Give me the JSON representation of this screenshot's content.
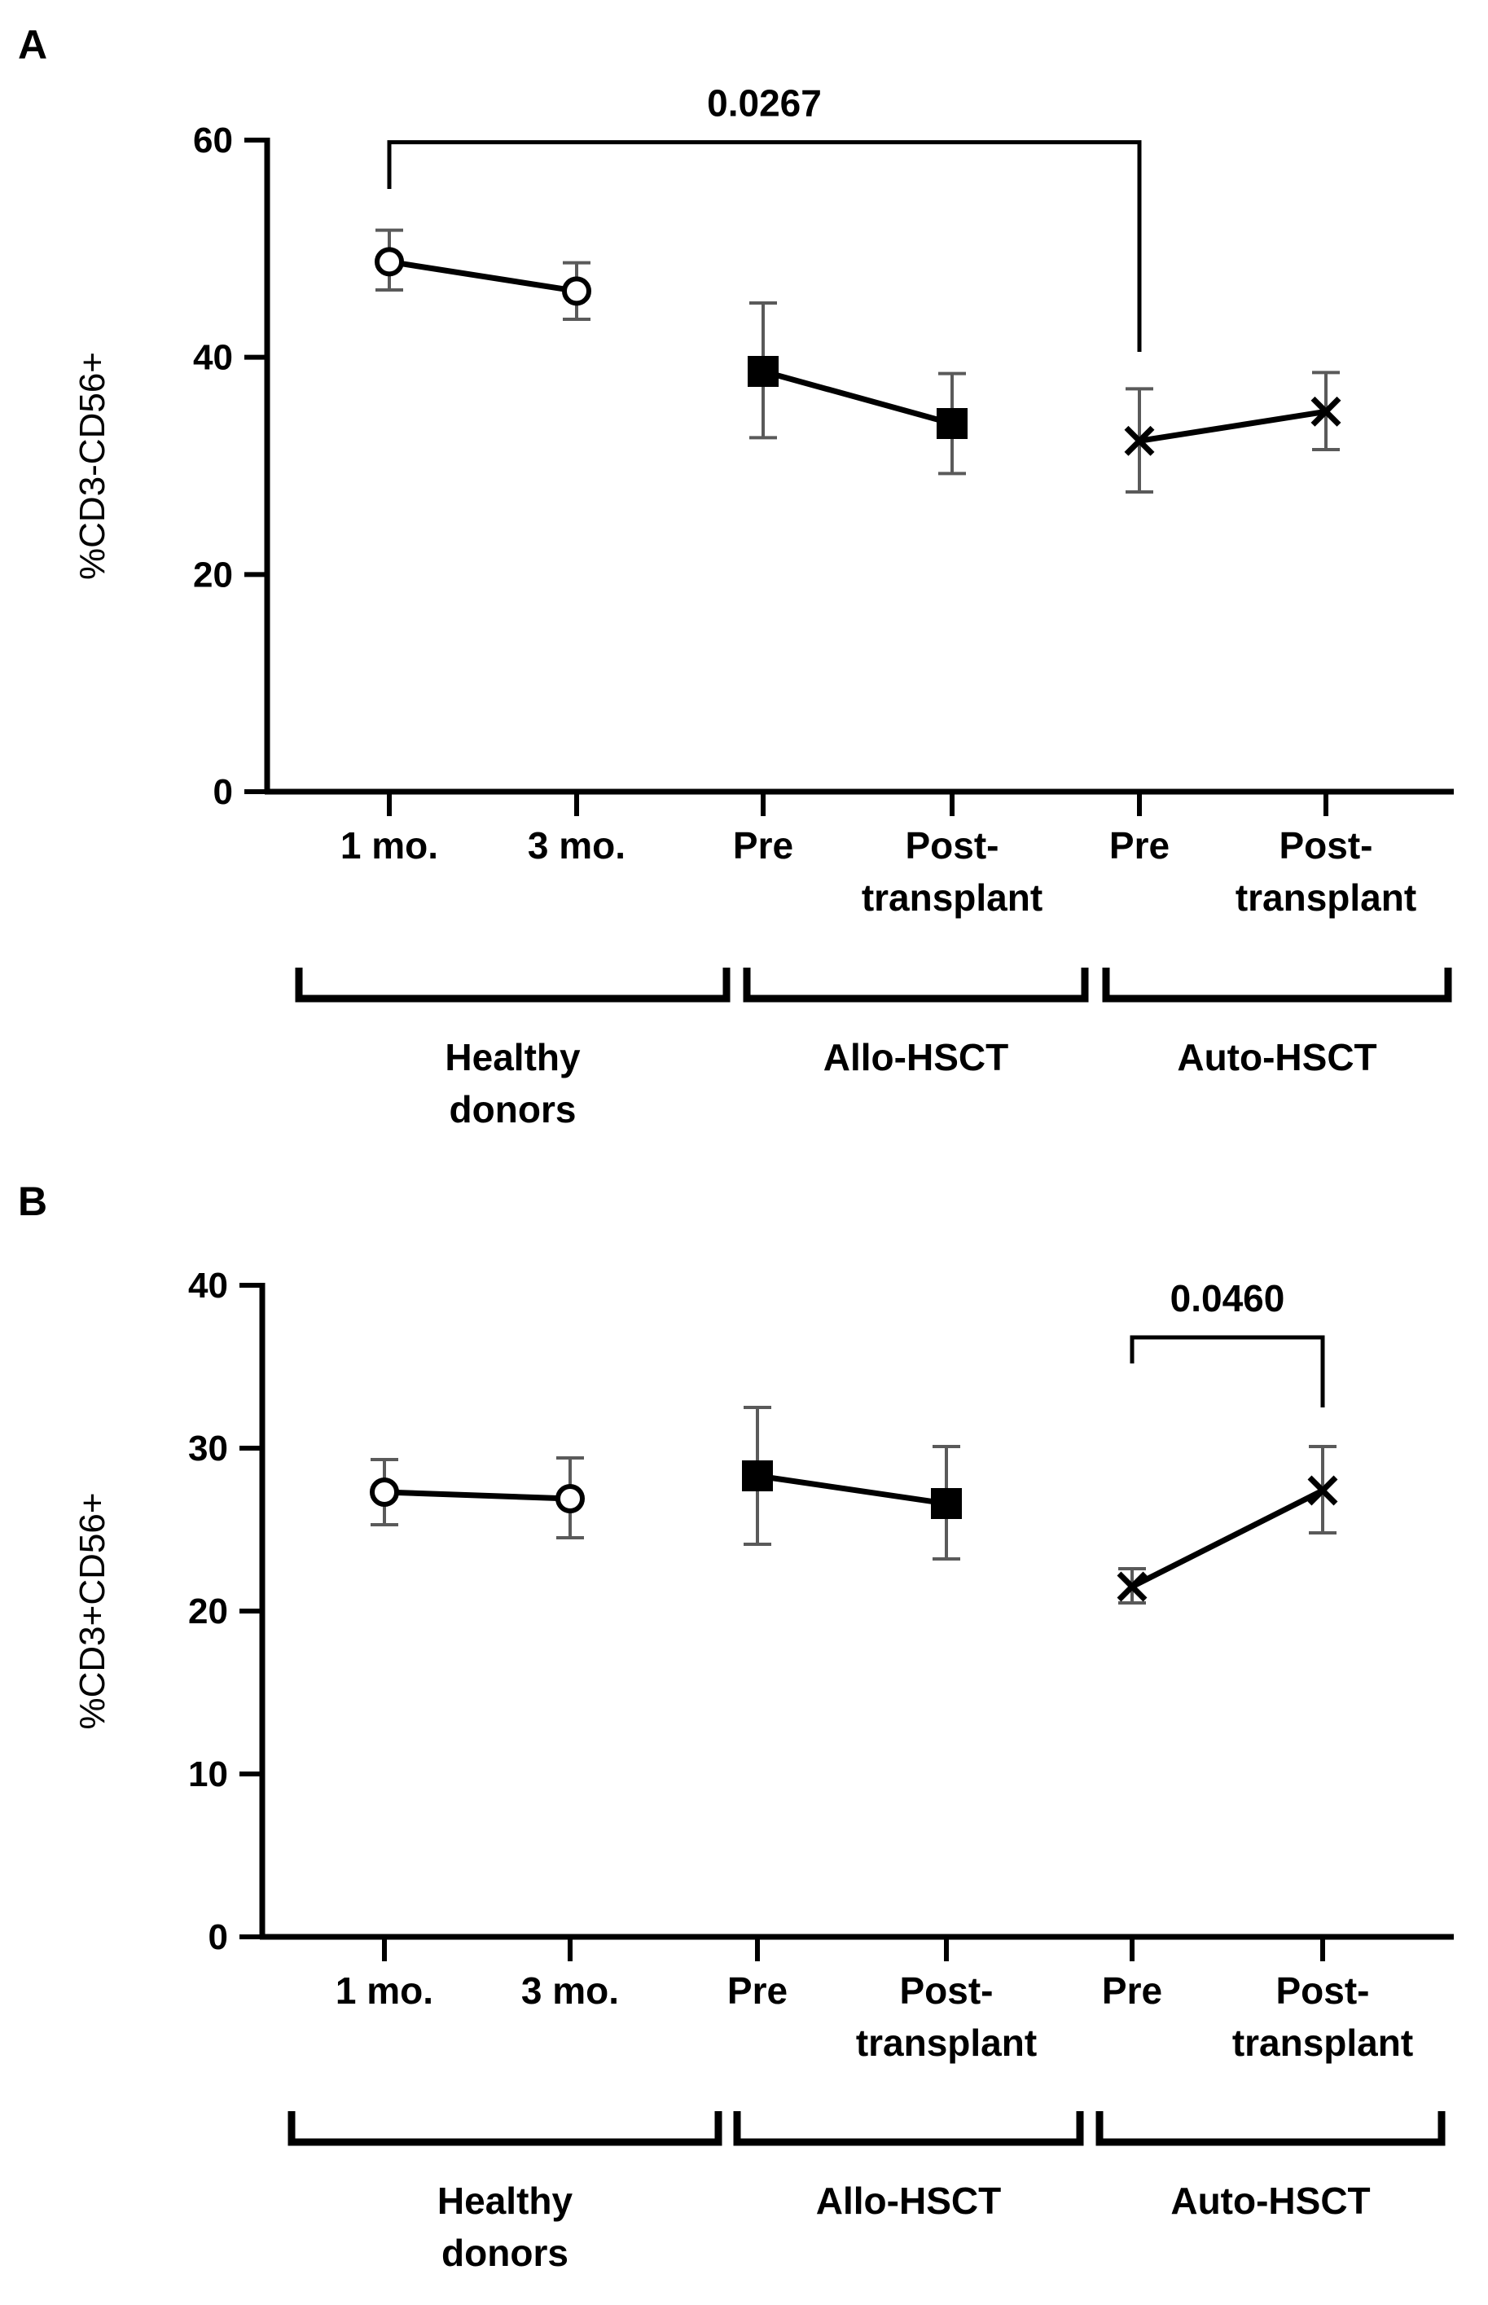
{
  "chart_data": [
    {
      "type": "line",
      "panel": "A",
      "ylabel": "%CD3-CD56+",
      "ylim": [
        0,
        60
      ],
      "yticks": [
        0,
        20,
        40,
        60
      ],
      "categories": [
        "1 mo.",
        "3 mo.",
        "Pre",
        "Post-\ntransplant",
        "Pre",
        "Post-\ntransplant"
      ],
      "groups": [
        {
          "name": "Healthy\ndonors",
          "categories": [
            0,
            1
          ]
        },
        {
          "name": "Allo-HSCT",
          "categories": [
            2,
            3
          ]
        },
        {
          "name": "Auto-HSCT",
          "categories": [
            4,
            5
          ]
        }
      ],
      "series": [
        {
          "name": "Healthy donors",
          "marker": "open-circle",
          "x": [
            0,
            1
          ],
          "values": [
            48.8,
            46.1
          ],
          "error_low": [
            46.2,
            43.5
          ],
          "error_high": [
            51.7,
            48.7
          ]
        },
        {
          "name": "Allo-HSCT",
          "marker": "filled-square",
          "x": [
            2,
            3
          ],
          "values": [
            38.7,
            33.9
          ],
          "error_low": [
            32.6,
            29.3
          ],
          "error_high": [
            45.0,
            38.5
          ]
        },
        {
          "name": "Auto-HSCT",
          "marker": "x",
          "x": [
            4,
            5
          ],
          "values": [
            32.3,
            35.0
          ],
          "error_low": [
            27.6,
            31.5
          ],
          "error_high": [
            37.1,
            38.6
          ]
        }
      ],
      "significance": [
        {
          "from": 0,
          "to": 4,
          "label": "0.0267",
          "bracket_y": 59.8,
          "end_y": [
            55.5,
            40.5
          ]
        }
      ]
    },
    {
      "type": "line",
      "panel": "B",
      "ylabel": "%CD3+CD56+",
      "ylim": [
        0,
        40
      ],
      "yticks": [
        0,
        10,
        20,
        30,
        40
      ],
      "categories": [
        "1 mo.",
        "3 mo.",
        "Pre",
        "Post-\ntransplant",
        "Pre",
        "Post-\ntransplant"
      ],
      "groups": [
        {
          "name": "Healthy\ndonors",
          "categories": [
            0,
            1
          ]
        },
        {
          "name": "Allo-HSCT",
          "categories": [
            2,
            3
          ]
        },
        {
          "name": "Auto-HSCT",
          "categories": [
            4,
            5
          ]
        }
      ],
      "series": [
        {
          "name": "Healthy donors",
          "marker": "open-circle",
          "x": [
            0,
            1
          ],
          "values": [
            27.3,
            26.9
          ],
          "error_low": [
            25.3,
            24.5
          ],
          "error_high": [
            29.3,
            29.4
          ]
        },
        {
          "name": "Allo-HSCT",
          "marker": "filled-square",
          "x": [
            2,
            3
          ],
          "values": [
            28.3,
            26.6
          ],
          "error_low": [
            24.1,
            23.2
          ],
          "error_high": [
            32.5,
            30.1
          ]
        },
        {
          "name": "Auto-HSCT",
          "marker": "x",
          "x": [
            4,
            5
          ],
          "values": [
            21.5,
            27.4
          ],
          "error_low": [
            20.5,
            24.8
          ],
          "error_high": [
            22.6,
            30.1
          ]
        }
      ],
      "significance": [
        {
          "from": 4,
          "to": 5,
          "label": "0.0460",
          "bracket_y": 36.8,
          "end_y": [
            35.2,
            32.5
          ]
        }
      ]
    }
  ]
}
